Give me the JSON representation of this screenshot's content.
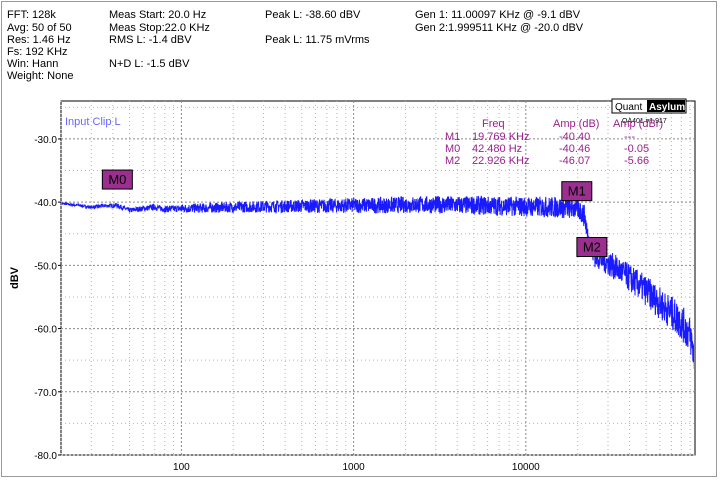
{
  "info_block": {
    "fft": "FFT:  128k",
    "avg": "Avg: 50 of 50",
    "res": "Res: 1.46 Hz",
    "fs": "Fs: 192 KHz",
    "win": "Win:  Hann",
    "weight": "Weight: None"
  },
  "measurements": {
    "meas_start": "Meas Start: 20.0 Hz",
    "meas_stop": "Meas Stop:22.0 KHz",
    "rms": "RMS L:  -1.4 dBV",
    "nd": "N+D L:  -1.5 dBV",
    "peak_dbv": "Peak L:  -38.60 dBV",
    "peak_mvrms": "Peak L:  11.75 mVrms"
  },
  "generators": {
    "gen1": "Gen 1: 11.00097 KHz @ -9.1   dBV",
    "gen2": "Gen 2:1.999511 KHz @ -20.0   dBV"
  },
  "logo": {
    "brand_left": "Quant",
    "brand_right": "Asylum",
    "version": "QA401 v1.917"
  },
  "marker_table": {
    "headers": [
      "Freq",
      "Amp (dB)",
      "Amp (dBr)"
    ],
    "rows": [
      {
        "marker": "M1",
        "freq": "19.769 KHz",
        "amp_db": "-40.40",
        "amp_dbr": "---"
      },
      {
        "marker": "M0",
        "freq": "42.480 Hz",
        "amp_db": "-40.46",
        "amp_dbr": "-0.05"
      },
      {
        "marker": "M2",
        "freq": "22.926 KHz",
        "amp_db": "-46.07",
        "amp_dbr": "-5.66"
      }
    ],
    "color": "#9b1f8e"
  },
  "markers": [
    {
      "label": "M0",
      "freq_hz": 42.48,
      "amp_db": -40.46
    },
    {
      "label": "M1",
      "freq_hz": 19769,
      "amp_db": -40.4
    },
    {
      "label": "M2",
      "freq_hz": 22926,
      "amp_db": -46.07
    }
  ],
  "chart_data": {
    "type": "line",
    "series": [
      {
        "name": "Input Clip L",
        "color": "#1a1aff",
        "x": [
          20,
          25,
          30,
          35,
          42,
          50,
          60,
          70,
          80,
          100,
          150,
          200,
          300,
          500,
          700,
          1000,
          1500,
          2000,
          3000,
          5000,
          7000,
          10000,
          15000,
          18000,
          20000,
          21000,
          22000,
          22500,
          23000,
          25000,
          30000,
          35000,
          40000,
          50000,
          60000,
          70000,
          80000,
          90000,
          96000
        ],
        "y": [
          -40.2,
          -40.5,
          -40.8,
          -40.6,
          -40.5,
          -41.3,
          -41.0,
          -40.8,
          -41.1,
          -41.0,
          -40.9,
          -40.8,
          -40.7,
          -40.6,
          -40.6,
          -40.5,
          -40.5,
          -40.4,
          -40.4,
          -40.5,
          -40.6,
          -40.7,
          -40.8,
          -40.9,
          -41.0,
          -41.5,
          -42.3,
          -44.0,
          -46.1,
          -48.4,
          -49.6,
          -50.8,
          -52.0,
          -54.0,
          -56.0,
          -57.5,
          -59.0,
          -61.0,
          -65.0
        ]
      }
    ],
    "noise_band": [
      {
        "x": 100,
        "spread": 0.7
      },
      {
        "x": 1000,
        "spread": 1.2
      },
      {
        "x": 10000,
        "spread": 1.6
      },
      {
        "x": 22000,
        "spread": 1.8
      },
      {
        "x": 40000,
        "spread": 2.2
      },
      {
        "x": 96000,
        "spread": 3.0
      }
    ],
    "xscale": "log",
    "xlim": [
      20,
      96000
    ],
    "ylim": [
      -80,
      -24
    ],
    "xticks": [
      100,
      1000,
      10000
    ],
    "xtick_labels": [
      "100",
      "1000",
      "10000"
    ],
    "yticks": [
      -30,
      -40,
      -50,
      -60,
      -70,
      -80
    ],
    "ytick_labels": [
      "-30.0",
      "-40.0",
      "-50.0",
      "-60.0",
      "-70.0",
      "-80.0"
    ],
    "ylabel": "dBV",
    "xlabel": "",
    "grid": true
  }
}
